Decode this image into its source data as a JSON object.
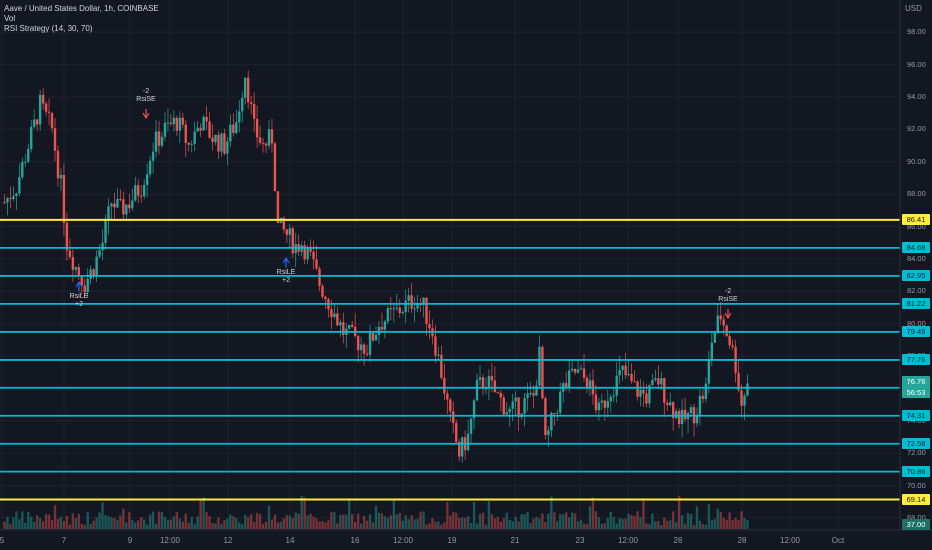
{
  "legend": {
    "symbol": "Aave / United States Dollar, 1h, COINBASE",
    "volume": "Vol",
    "strategy": "RSI Strategy (14, 30, 70)"
  },
  "currency": "USD",
  "price_axis": [
    "98.00",
    "96.00",
    "94.00",
    "92.00",
    "90.00",
    "88.00",
    "86.00",
    "84.00",
    "82.00",
    "80.00",
    "78.00",
    "76.00",
    "74.00",
    "72.00",
    "70.00",
    "68.00"
  ],
  "time_axis": [
    "5",
    "7",
    "9",
    "12:00",
    "12",
    "14",
    "16",
    "12:00",
    "19",
    "21",
    "23",
    "12:00",
    "26",
    "28",
    "12:00",
    "Oct"
  ],
  "levels": [
    {
      "value": "86.41",
      "color": "#ffeb3b"
    },
    {
      "value": "84.68",
      "color": "#00bcd4"
    },
    {
      "value": "82.95",
      "color": "#00bcd4"
    },
    {
      "value": "81.22",
      "color": "#00bcd4"
    },
    {
      "value": "79.49",
      "color": "#00bcd4"
    },
    {
      "value": "77.76",
      "color": "#00bcd4"
    },
    {
      "value": "76.04",
      "color": "#00bcd4"
    },
    {
      "value": "74.31",
      "color": "#00bcd4"
    },
    {
      "value": "72.58",
      "color": "#00bcd4"
    },
    {
      "value": "70.86",
      "color": "#00bcd4"
    },
    {
      "value": "69.14",
      "color": "#ffeb3b"
    }
  ],
  "last_price": {
    "value": "76.76",
    "countdown": "56:53"
  },
  "volume_label": "37.00",
  "signals": [
    {
      "qty": "+2",
      "label": "RsiLE",
      "direction": "long"
    },
    {
      "qty": "-2",
      "label": "RsiSE",
      "direction": "short"
    },
    {
      "qty": "+2",
      "label": "RsiLE",
      "direction": "long"
    },
    {
      "qty": "-2",
      "label": "RsiSE",
      "direction": "short"
    }
  ],
  "colors": {
    "up": "#26a69a",
    "down": "#ef5350",
    "background": "#131722",
    "grid": "#1e222d"
  },
  "chart_data": {
    "type": "candlestick",
    "x_range": [
      "5",
      "28"
    ],
    "ylim": [
      67.5,
      99.5
    ],
    "close_anchors": [
      [
        0,
        87.5
      ],
      [
        4,
        88.5
      ],
      [
        8,
        91.0
      ],
      [
        12,
        93.5
      ],
      [
        16,
        92.0
      ],
      [
        19,
        88.5
      ],
      [
        21,
        85.0
      ],
      [
        24,
        83.5
      ],
      [
        27,
        82.5
      ],
      [
        30,
        83.5
      ],
      [
        33,
        85.0
      ],
      [
        36,
        87.5
      ],
      [
        39,
        87.0
      ],
      [
        42,
        87.5
      ],
      [
        46,
        88.5
      ],
      [
        50,
        91.0
      ],
      [
        54,
        92.0
      ],
      [
        58,
        92.5
      ],
      [
        62,
        91.0
      ],
      [
        66,
        92.5
      ],
      [
        70,
        91.5
      ],
      [
        74,
        91.0
      ],
      [
        78,
        92.5
      ],
      [
        81,
        95.5
      ],
      [
        84,
        92.0
      ],
      [
        87,
        91.0
      ],
      [
        90,
        91.5
      ],
      [
        92,
        86.0
      ],
      [
        95,
        85.5
      ],
      [
        98,
        84.8
      ],
      [
        100,
        85.0
      ],
      [
        103,
        84.0
      ],
      [
        106,
        82.5
      ],
      [
        110,
        81.0
      ],
      [
        114,
        79.5
      ],
      [
        118,
        79.0
      ],
      [
        122,
        78.5
      ],
      [
        126,
        80.0
      ],
      [
        130,
        80.5
      ],
      [
        134,
        81.0
      ],
      [
        138,
        81.5
      ],
      [
        141,
        81.0
      ],
      [
        144,
        79.5
      ],
      [
        147,
        77.0
      ],
      [
        150,
        74.0
      ],
      [
        153,
        72.0
      ],
      [
        156,
        73.0
      ],
      [
        159,
        76.0
      ],
      [
        162,
        76.5
      ],
      [
        166,
        75.5
      ],
      [
        170,
        74.5
      ],
      [
        174,
        75.0
      ],
      [
        178,
        75.5
      ],
      [
        180,
        78.0
      ],
      [
        182,
        72.5
      ],
      [
        185,
        74.5
      ],
      [
        188,
        76.0
      ],
      [
        192,
        77.0
      ],
      [
        196,
        76.5
      ],
      [
        200,
        74.5
      ],
      [
        204,
        76.0
      ],
      [
        208,
        77.0
      ],
      [
        212,
        76.0
      ],
      [
        216,
        75.5
      ],
      [
        220,
        76.5
      ],
      [
        224,
        75.0
      ],
      [
        228,
        74.0
      ],
      [
        232,
        74.5
      ],
      [
        236,
        76.0
      ],
      [
        238,
        79.0
      ],
      [
        241,
        80.5
      ],
      [
        244,
        79.0
      ],
      [
        246,
        77.5
      ],
      [
        248,
        75.0
      ],
      [
        250,
        76.5
      ]
    ]
  }
}
